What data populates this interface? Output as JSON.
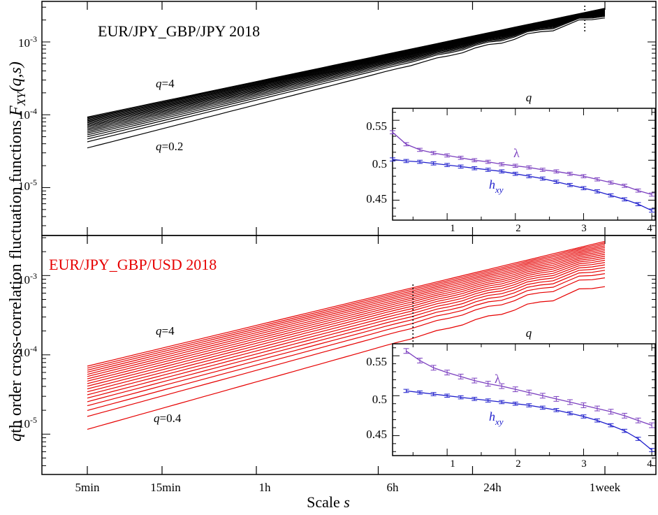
{
  "figure": {
    "ylabel_prefix": "q",
    "ylabel_main": "th order cross-correlation fluctuation functions ",
    "ylabel_F": "F",
    "ylabel_sub": "XY",
    "ylabel_args": "(q,s)",
    "xlabel_main": "Scale ",
    "xlabel_var": "s",
    "x_ticks": [
      "5min",
      "15min",
      "1h",
      "6h",
      "24h",
      "1week"
    ]
  },
  "chart_data": [
    {
      "type": "line",
      "panel": "top",
      "title": "EUR/JPY_GBP/JPY 2018",
      "color": "#000000",
      "x_scale": "log",
      "y_scale": "log",
      "x_unit": "minutes",
      "x_tick_values": [
        5,
        15,
        60,
        360,
        1440,
        10080
      ],
      "y_ticks": [
        "10-5",
        "10-4",
        "10-3"
      ],
      "ylim": [
        2.2e-06,
        0.0036
      ],
      "q_range": [
        0.2,
        4
      ],
      "q_step": 0.2,
      "annotations": [
        {
          "text_q": "q",
          "text_rest": "=4"
        },
        {
          "text_q": "q",
          "text_rest": "=0.2"
        }
      ],
      "crossover_marker_minutes": 7500,
      "series_endpoints": {
        "q=0.2": {
          "x": [
            5,
            10080
          ],
          "y": [
            3.5e-05,
            0.0023
          ]
        },
        "q=4": {
          "x": [
            5,
            10080
          ],
          "y": [
            9.3e-05,
            0.0029
          ]
        }
      },
      "inset": {
        "type": "line",
        "xlabel": "q",
        "x_ticks": [
          "1",
          "2",
          "3",
          "4"
        ],
        "xlim": [
          0.2,
          4.05
        ],
        "y_ticks": [
          "0.45",
          "0.5",
          "0.55"
        ],
        "ylim": [
          0.425,
          0.565
        ],
        "series": [
          {
            "name": "λ",
            "color": "#7b3fbf",
            "x": [
              0.2,
              0.4,
              0.6,
              0.8,
              1.0,
              1.2,
              1.4,
              1.6,
              1.8,
              2.0,
              2.2,
              2.4,
              2.6,
              2.8,
              3.0,
              3.2,
              3.4,
              3.6,
              3.8,
              4.0
            ],
            "y": [
              0.535,
              0.52,
              0.513,
              0.509,
              0.506,
              0.503,
              0.5,
              0.498,
              0.495,
              0.493,
              0.491,
              0.488,
              0.486,
              0.483,
              0.48,
              0.476,
              0.472,
              0.468,
              0.462,
              0.457
            ]
          },
          {
            "name_main": "h",
            "name_sub": "xy",
            "color": "#1f1fcc",
            "x": [
              0.2,
              0.4,
              0.6,
              0.8,
              1.0,
              1.2,
              1.4,
              1.6,
              1.8,
              2.0,
              2.2,
              2.4,
              2.6,
              2.8,
              3.0,
              3.2,
              3.4,
              3.6,
              3.8,
              4.0
            ],
            "y": [
              0.501,
              0.499,
              0.498,
              0.496,
              0.494,
              0.492,
              0.49,
              0.488,
              0.486,
              0.483,
              0.48,
              0.477,
              0.473,
              0.469,
              0.465,
              0.461,
              0.456,
              0.451,
              0.445,
              0.437
            ]
          }
        ]
      }
    },
    {
      "type": "line",
      "panel": "bottom",
      "title": "EUR/JPY_GBP/USD 2018",
      "color": "#e60000",
      "x_scale": "log",
      "y_scale": "log",
      "x_unit": "minutes",
      "x_tick_values": [
        5,
        15,
        60,
        360,
        1440,
        10080
      ],
      "y_ticks": [
        "10-5",
        "10-4",
        "10-3"
      ],
      "ylim": [
        3.1e-06,
        0.0032
      ],
      "q_range": [
        0.4,
        4
      ],
      "q_step": 0.2,
      "annotations": [
        {
          "text_q": "q",
          "text_rest": "=4"
        },
        {
          "text_q": "q",
          "text_rest": "=0.4"
        }
      ],
      "crossover_marker_minutes": 600,
      "series_endpoints": {
        "q=0.4": {
          "x": [
            5,
            10080
          ],
          "y": [
            1.15e-05,
            0.00078
          ]
        },
        "q=4": {
          "x": [
            5,
            10080
          ],
          "y": [
            7.2e-05,
            0.0027
          ]
        }
      },
      "inset": {
        "type": "line",
        "xlabel": "q",
        "x_ticks": [
          "1",
          "2",
          "3",
          "4"
        ],
        "xlim": [
          0.2,
          4.05
        ],
        "y_ticks": [
          "0.45",
          "0.5",
          "0.55"
        ],
        "ylim": [
          0.425,
          0.565
        ],
        "series": [
          {
            "name": "λ",
            "color": "#7b3fbf",
            "x": [
              0.4,
              0.6,
              0.8,
              1.0,
              1.2,
              1.4,
              1.6,
              1.8,
              2.0,
              2.2,
              2.4,
              2.6,
              2.8,
              3.0,
              3.2,
              3.4,
              3.6,
              3.8,
              4.0
            ],
            "y": [
              0.556,
              0.544,
              0.535,
              0.529,
              0.524,
              0.519,
              0.515,
              0.512,
              0.508,
              0.504,
              0.5,
              0.496,
              0.492,
              0.488,
              0.484,
              0.48,
              0.475,
              0.469,
              0.463
            ],
            "y_error": 0.003
          },
          {
            "name_main": "h",
            "name_sub": "xy",
            "color": "#1f1fcc",
            "x": [
              0.4,
              0.6,
              0.8,
              1.0,
              1.2,
              1.4,
              1.6,
              1.8,
              2.0,
              2.2,
              2.4,
              2.6,
              2.8,
              3.0,
              3.2,
              3.4,
              3.6,
              3.8,
              4.0
            ],
            "y": [
              0.506,
              0.504,
              0.502,
              0.5,
              0.498,
              0.496,
              0.494,
              0.492,
              0.49,
              0.488,
              0.485,
              0.482,
              0.478,
              0.474,
              0.469,
              0.463,
              0.456,
              0.446,
              0.432
            ],
            "y_error": 0.002
          }
        ]
      }
    }
  ]
}
